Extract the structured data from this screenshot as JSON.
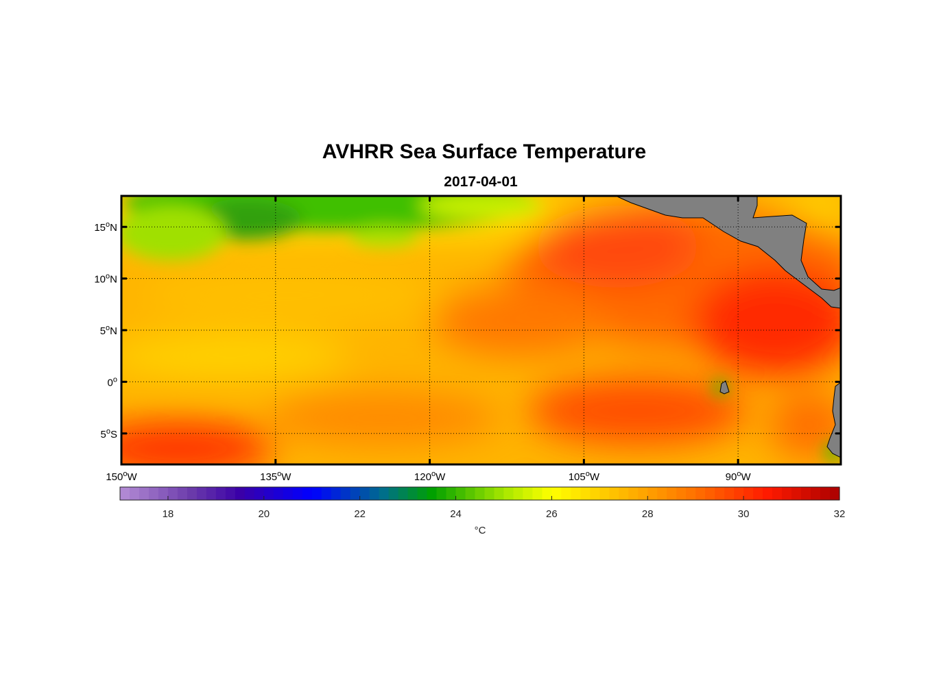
{
  "title": "AVHRR Sea Surface Temperature",
  "subtitle": "2017-04-01",
  "map": {
    "lon_range": [
      -150,
      -80
    ],
    "lat_range": [
      -8,
      18
    ],
    "lon_ticks": [
      {
        "value": -150,
        "deg": "150",
        "hem": "W"
      },
      {
        "value": -135,
        "deg": "135",
        "hem": "W"
      },
      {
        "value": -120,
        "deg": "120",
        "hem": "W"
      },
      {
        "value": -105,
        "deg": "105",
        "hem": "W"
      },
      {
        "value": -90,
        "deg": "90",
        "hem": "W"
      }
    ],
    "lat_ticks": [
      {
        "value": 15,
        "deg": "15",
        "hem": "N"
      },
      {
        "value": 10,
        "deg": "10",
        "hem": "N"
      },
      {
        "value": 5,
        "deg": "5",
        "hem": "N"
      },
      {
        "value": 0,
        "deg": "0",
        "hem": ""
      },
      {
        "value": -5,
        "deg": "5",
        "hem": "S"
      }
    ],
    "land_color": "#808080",
    "gridline_color": "#000000"
  },
  "chart_data": {
    "type": "heatmap",
    "variable": "Sea Surface Temperature",
    "units": "°C",
    "colorbar": {
      "min": 17,
      "max": 32,
      "ticks": [
        18,
        20,
        22,
        24,
        26,
        28,
        30,
        32
      ],
      "label": "°C",
      "color_stops": [
        {
          "value": 17,
          "color": "#b58ed6"
        },
        {
          "value": 18.5,
          "color": "#6a3aaa"
        },
        {
          "value": 19.5,
          "color": "#3a00a8"
        },
        {
          "value": 21,
          "color": "#0000ff"
        },
        {
          "value": 22.5,
          "color": "#006f8a"
        },
        {
          "value": 23.5,
          "color": "#00a000"
        },
        {
          "value": 25,
          "color": "#a6e600"
        },
        {
          "value": 26,
          "color": "#ffff00"
        },
        {
          "value": 27.5,
          "color": "#ffb800"
        },
        {
          "value": 29,
          "color": "#ff7000"
        },
        {
          "value": 30.5,
          "color": "#ff1a00"
        },
        {
          "value": 32,
          "color": "#aa0000"
        }
      ]
    }
  }
}
